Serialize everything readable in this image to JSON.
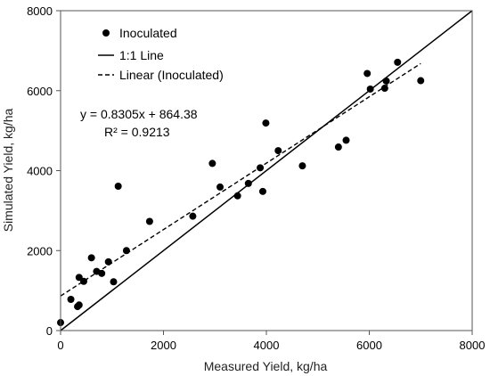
{
  "chart_data": {
    "type": "scatter",
    "xlabel": "Measured Yield, kg/ha",
    "ylabel": "Simulated Yield, kg/ha",
    "xlim": [
      0,
      8000
    ],
    "ylim": [
      0,
      8000
    ],
    "x_ticks": [
      "0",
      "2000",
      "4000",
      "6000",
      "8000"
    ],
    "y_ticks": [
      "0",
      "2000",
      "4000",
      "6000",
      "8000"
    ],
    "grid": false,
    "legend_position": "top-left",
    "legend": {
      "scatter": "Inoculated",
      "one_to_one": "1:1 Line",
      "linear": "Linear (Inoculated)"
    },
    "annotations": {
      "equation": "y = 0.8305x + 864.38",
      "r2": "R² = 0.9213"
    },
    "trendline": {
      "slope": 0.8305,
      "intercept": 864.38,
      "x_range": [
        0,
        7000
      ]
    },
    "one_to_one": {
      "x_range": [
        0,
        8000
      ]
    },
    "colors": {
      "points": "#000000",
      "lines": "#000000"
    },
    "series": [
      {
        "name": "Inoculated",
        "points": [
          [
            0,
            200
          ],
          [
            200,
            780
          ],
          [
            330,
            600
          ],
          [
            360,
            640
          ],
          [
            360,
            1330
          ],
          [
            450,
            1230
          ],
          [
            600,
            1820
          ],
          [
            700,
            1480
          ],
          [
            800,
            1430
          ],
          [
            930,
            1720
          ],
          [
            1030,
            1220
          ],
          [
            1120,
            3610
          ],
          [
            1280,
            2000
          ],
          [
            1730,
            2730
          ],
          [
            2570,
            2860
          ],
          [
            2950,
            4180
          ],
          [
            3100,
            3590
          ],
          [
            3440,
            3370
          ],
          [
            3650,
            3680
          ],
          [
            3880,
            4070
          ],
          [
            3930,
            3480
          ],
          [
            3990,
            5190
          ],
          [
            4230,
            4500
          ],
          [
            4700,
            4120
          ],
          [
            5400,
            4590
          ],
          [
            5550,
            4760
          ],
          [
            5960,
            6430
          ],
          [
            6020,
            6040
          ],
          [
            6300,
            6060
          ],
          [
            6330,
            6240
          ],
          [
            6550,
            6710
          ],
          [
            7000,
            6250
          ]
        ]
      }
    ]
  }
}
